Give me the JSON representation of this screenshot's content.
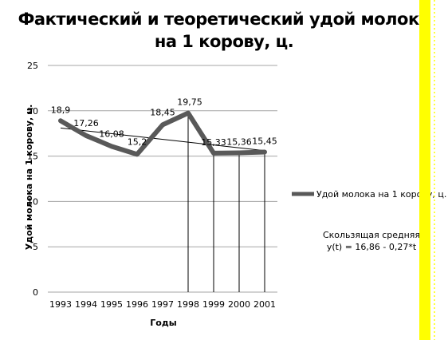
{
  "colors": {
    "series": "#595959",
    "grid": "#a6a6a6",
    "trend": "#000000",
    "yellow_stripe": "#ffff00",
    "border": "#d9d9d9"
  },
  "chart_data": {
    "type": "line",
    "title_lines": [
      "Фактический и теоретический удой молока",
      "на 1 корову, ц."
    ],
    "xlabel": "Годы",
    "ylabel": "Удой молока на 1 корову, ц.",
    "ylim": [
      0,
      25
    ],
    "yticks": [
      "0",
      "5",
      "10",
      "15",
      "20",
      "25"
    ],
    "grid": true,
    "legend_position": "right",
    "categories": [
      "1993",
      "1994",
      "1995",
      "1996",
      "1997",
      "1998",
      "1999",
      "2000",
      "2001"
    ],
    "series": [
      {
        "name": "Удой молока на 1 корову, ц.",
        "values": [
          18.9,
          17.26,
          16.08,
          15.2,
          18.45,
          19.75,
          15.33,
          15.36,
          15.45
        ],
        "labels": [
          "18,9",
          "17,26",
          "16,08",
          "15,2",
          "18,45",
          "19,75",
          "15,33",
          "15,36",
          "15,45"
        ]
      }
    ],
    "trendline": {
      "text_lines": [
        "Скользящая средняя",
        "y(t) = 16,86 - 0,27*t"
      ],
      "start_value": 18.1,
      "end_value": 15.6
    },
    "annotation_drop_lines": [
      "1998",
      "1999",
      "2000",
      "2001"
    ]
  }
}
